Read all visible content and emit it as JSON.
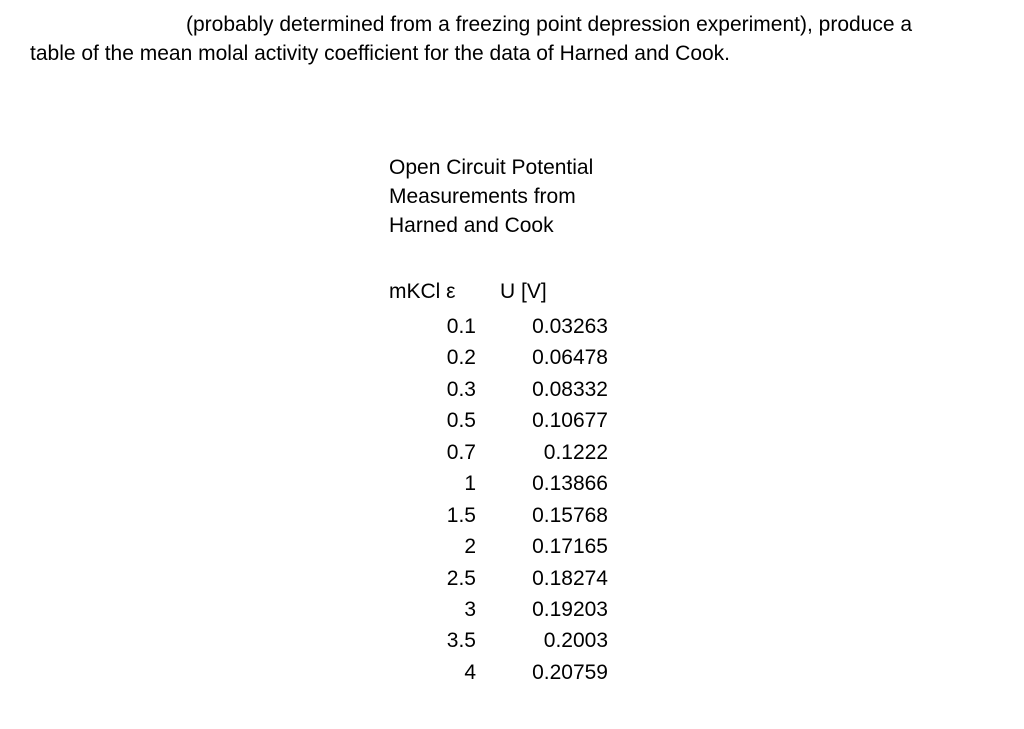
{
  "page": {
    "background": "#ffffff",
    "text_color": "#000000"
  },
  "paragraph": {
    "line1": "(probably determined from a freezing point depression experiment), produce a",
    "line2": "table of the mean molal activity coefficient for the data of Harned and Cook."
  },
  "table_title": {
    "line1": "Open Circuit Potential",
    "line2": "Measurements from",
    "line3": "Harned and Cook"
  },
  "table": {
    "header_molality": "mKCl ε",
    "header_potential": "U [V]",
    "rows": [
      {
        "molality": "0.1",
        "potential": "0.03263"
      },
      {
        "molality": "0.2",
        "potential": "0.06478"
      },
      {
        "molality": "0.3",
        "potential": "0.08332"
      },
      {
        "molality": "0.5",
        "potential": "0.10677"
      },
      {
        "molality": "0.7",
        "potential": "0.1222"
      },
      {
        "molality": "1",
        "potential": "0.13866"
      },
      {
        "molality": "1.5",
        "potential": "0.15768"
      },
      {
        "molality": "2",
        "potential": "0.17165"
      },
      {
        "molality": "2.5",
        "potential": "0.18274"
      },
      {
        "molality": "3",
        "potential": "0.19203"
      },
      {
        "molality": "3.5",
        "potential": "0.2003"
      },
      {
        "molality": "4",
        "potential": "0.20759"
      }
    ]
  }
}
